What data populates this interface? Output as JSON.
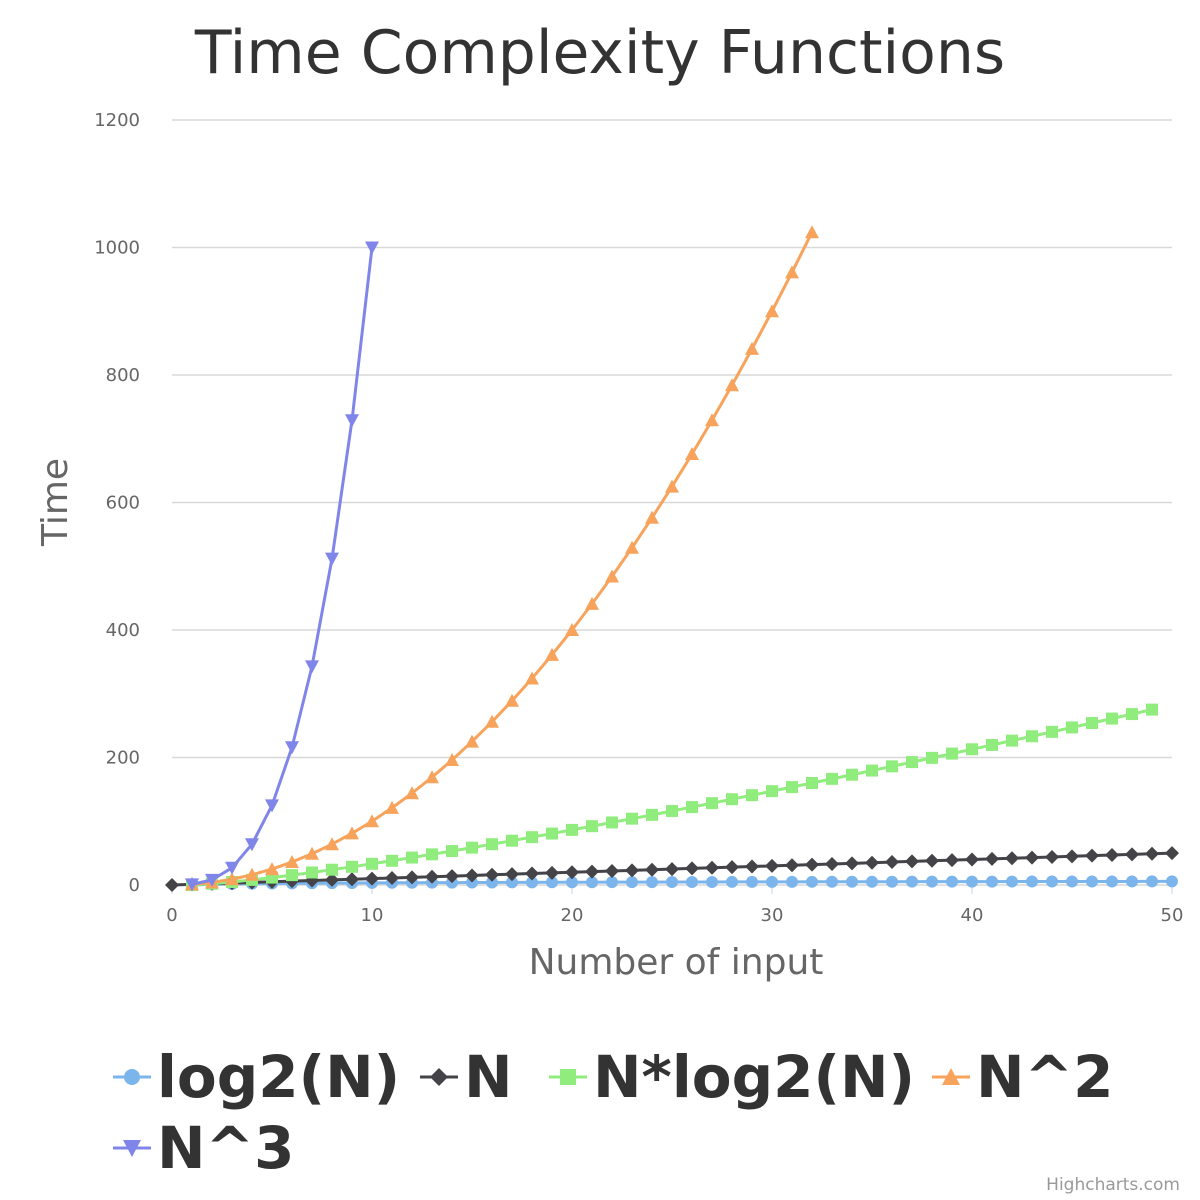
{
  "chart_data": {
    "type": "line",
    "title": "Time Complexity Functions",
    "xlabel": "Number of input",
    "ylabel": "Time",
    "xlim": [
      0,
      50
    ],
    "ylim": [
      0,
      1200
    ],
    "x_ticks": [
      "0",
      "10",
      "20",
      "30",
      "40",
      "50"
    ],
    "y_ticks": [
      "0",
      "200",
      "400",
      "600",
      "800",
      "1000",
      "1200"
    ],
    "grid": "horizontal",
    "legend_position": "bottom-left",
    "credits": "Highcharts.com",
    "series": [
      {
        "name": "log2(N)",
        "color": "#7cb5ec",
        "marker": "circle",
        "x": [
          1,
          2,
          3,
          4,
          5,
          6,
          7,
          8,
          9,
          10,
          11,
          12,
          13,
          14,
          15,
          16,
          17,
          18,
          19,
          20,
          21,
          22,
          23,
          24,
          25,
          26,
          27,
          28,
          29,
          30,
          31,
          32,
          33,
          34,
          35,
          36,
          37,
          38,
          39,
          40,
          41,
          42,
          43,
          44,
          45,
          46,
          47,
          48,
          49,
          50
        ],
        "y": [
          0,
          1,
          1.58,
          2,
          2.32,
          2.58,
          2.81,
          3,
          3.17,
          3.32,
          3.46,
          3.58,
          3.7,
          3.81,
          3.91,
          4,
          4.09,
          4.17,
          4.25,
          4.32,
          4.39,
          4.46,
          4.52,
          4.58,
          4.64,
          4.7,
          4.75,
          4.81,
          4.86,
          4.91,
          4.95,
          5,
          5.04,
          5.09,
          5.13,
          5.17,
          5.21,
          5.25,
          5.29,
          5.32,
          5.36,
          5.39,
          5.43,
          5.46,
          5.49,
          5.52,
          5.55,
          5.58,
          5.61,
          5.64
        ]
      },
      {
        "name": "N",
        "color": "#434348",
        "marker": "diamond",
        "x": [
          0,
          1,
          2,
          3,
          4,
          5,
          6,
          7,
          8,
          9,
          10,
          11,
          12,
          13,
          14,
          15,
          16,
          17,
          18,
          19,
          20,
          21,
          22,
          23,
          24,
          25,
          26,
          27,
          28,
          29,
          30,
          31,
          32,
          33,
          34,
          35,
          36,
          37,
          38,
          39,
          40,
          41,
          42,
          43,
          44,
          45,
          46,
          47,
          48,
          49,
          50
        ],
        "y": [
          0,
          1,
          2,
          3,
          4,
          5,
          6,
          7,
          8,
          9,
          10,
          11,
          12,
          13,
          14,
          15,
          16,
          17,
          18,
          19,
          20,
          21,
          22,
          23,
          24,
          25,
          26,
          27,
          28,
          29,
          30,
          31,
          32,
          33,
          34,
          35,
          36,
          37,
          38,
          39,
          40,
          41,
          42,
          43,
          44,
          45,
          46,
          47,
          48,
          49,
          50
        ]
      },
      {
        "name": "N*log2(N)",
        "color": "#90ed7d",
        "marker": "square",
        "x": [
          1,
          2,
          3,
          4,
          5,
          6,
          7,
          8,
          9,
          10,
          11,
          12,
          13,
          14,
          15,
          16,
          17,
          18,
          19,
          20,
          21,
          22,
          23,
          24,
          25,
          26,
          27,
          28,
          29,
          30,
          31,
          32,
          33,
          34,
          35,
          36,
          37,
          38,
          39,
          40,
          41,
          42,
          43,
          44,
          45,
          46,
          47,
          48,
          49
        ],
        "y": [
          0,
          2,
          4.75,
          8,
          11.61,
          15.51,
          19.65,
          24,
          28.53,
          33.22,
          38.05,
          43.02,
          48.11,
          53.3,
          58.6,
          64,
          69.49,
          75.06,
          80.71,
          86.44,
          92.24,
          98.11,
          104.04,
          110.04,
          116.1,
          122.21,
          128.38,
          134.6,
          140.88,
          147.21,
          153.58,
          160,
          166.47,
          172.97,
          179.52,
          186.12,
          192.75,
          199.42,
          206.13,
          212.88,
          219.66,
          226.48,
          233.33,
          240.21,
          247.13,
          254.08,
          261.06,
          268.08,
          275.13
        ]
      },
      {
        "name": "N^2",
        "color": "#f7a35c",
        "marker": "triangle",
        "x": [
          1,
          2,
          3,
          4,
          5,
          6,
          7,
          8,
          9,
          10,
          11,
          12,
          13,
          14,
          15,
          16,
          17,
          18,
          19,
          20,
          21,
          22,
          23,
          24,
          25,
          26,
          27,
          28,
          29,
          30,
          31,
          32
        ],
        "y": [
          1,
          4,
          9,
          16,
          25,
          36,
          49,
          64,
          81,
          100,
          121,
          144,
          169,
          196,
          225,
          256,
          289,
          324,
          361,
          400,
          441,
          484,
          529,
          576,
          625,
          676,
          729,
          784,
          841,
          900,
          961,
          1024
        ]
      },
      {
        "name": "N^3",
        "color": "#8085e9",
        "marker": "triangle-down",
        "x": [
          1,
          2,
          3,
          4,
          5,
          6,
          7,
          8,
          9,
          10
        ],
        "y": [
          1,
          8,
          27,
          64,
          125,
          216,
          343,
          512,
          729,
          1000
        ]
      }
    ]
  }
}
